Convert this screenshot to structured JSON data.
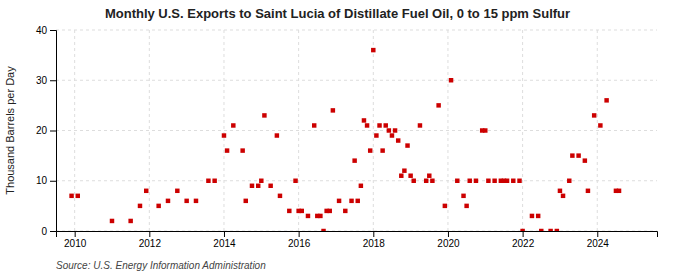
{
  "chart_data": {
    "type": "scatter",
    "title": "Monthly U.S. Exports to Saint Lucia of Distillate Fuel Oil, 0 to 15 ppm Sulfur",
    "ylabel": "Thousand Barrels per Day",
    "annotations": [
      "Source: U.S. Energy Information Administration"
    ],
    "color": "#cc0000",
    "marker": "square",
    "grid": true,
    "xlim": [
      2009.5,
      2025.6
    ],
    "xticks": [
      2010,
      2012,
      2014,
      2016,
      2018,
      2020,
      2022,
      2024
    ],
    "ylim": [
      0,
      40
    ],
    "yticks": [
      0,
      10,
      20,
      30,
      40
    ],
    "x": [
      2009.917,
      2010.083,
      2011.0,
      2011.5,
      2011.75,
      2011.917,
      2012.25,
      2012.5,
      2012.75,
      2013.0,
      2013.25,
      2013.583,
      2013.75,
      2014.0,
      2014.083,
      2014.25,
      2014.5,
      2014.583,
      2014.75,
      2014.917,
      2015.0,
      2015.083,
      2015.25,
      2015.417,
      2015.5,
      2015.75,
      2015.917,
      2016.0,
      2016.083,
      2016.25,
      2016.417,
      2016.5,
      2016.583,
      2016.667,
      2016.75,
      2016.833,
      2016.917,
      2017.083,
      2017.25,
      2017.417,
      2017.5,
      2017.583,
      2017.667,
      2017.75,
      2017.833,
      2017.917,
      2018.0,
      2018.083,
      2018.167,
      2018.25,
      2018.333,
      2018.417,
      2018.5,
      2018.583,
      2018.667,
      2018.75,
      2018.833,
      2018.917,
      2019.0,
      2019.083,
      2019.25,
      2019.417,
      2019.5,
      2019.583,
      2019.75,
      2019.917,
      2020.083,
      2020.25,
      2020.417,
      2020.5,
      2020.583,
      2020.75,
      2020.917,
      2021.0,
      2021.083,
      2021.25,
      2021.417,
      2021.5,
      2021.583,
      2021.75,
      2021.917,
      2022.0,
      2022.25,
      2022.417,
      2022.5,
      2022.75,
      2022.917,
      2023.0,
      2023.083,
      2023.25,
      2023.333,
      2023.5,
      2023.667,
      2023.75,
      2023.917,
      2024.083,
      2024.25,
      2024.5,
      2024.583
    ],
    "values": [
      7,
      7,
      2,
      2,
      5,
      8,
      5,
      6,
      8,
      6,
      6,
      10,
      10,
      19,
      16,
      21,
      16,
      6,
      9,
      9,
      10,
      23,
      9,
      19,
      7,
      4,
      10,
      4,
      4,
      3,
      21,
      3,
      3,
      0,
      4,
      4,
      24,
      6,
      4,
      6,
      14,
      6,
      9,
      22,
      21,
      16,
      36,
      19,
      21,
      16,
      21,
      20,
      19,
      20,
      18,
      11,
      12,
      17,
      11,
      10,
      21,
      10,
      11,
      10,
      25,
      5,
      30,
      10,
      7,
      5,
      10,
      10,
      20,
      20,
      10,
      10,
      10,
      10,
      10,
      10,
      10,
      0,
      3,
      3,
      0,
      0,
      0,
      8,
      7,
      10,
      15,
      15,
      14,
      8,
      23,
      21,
      26,
      8,
      8
    ]
  }
}
